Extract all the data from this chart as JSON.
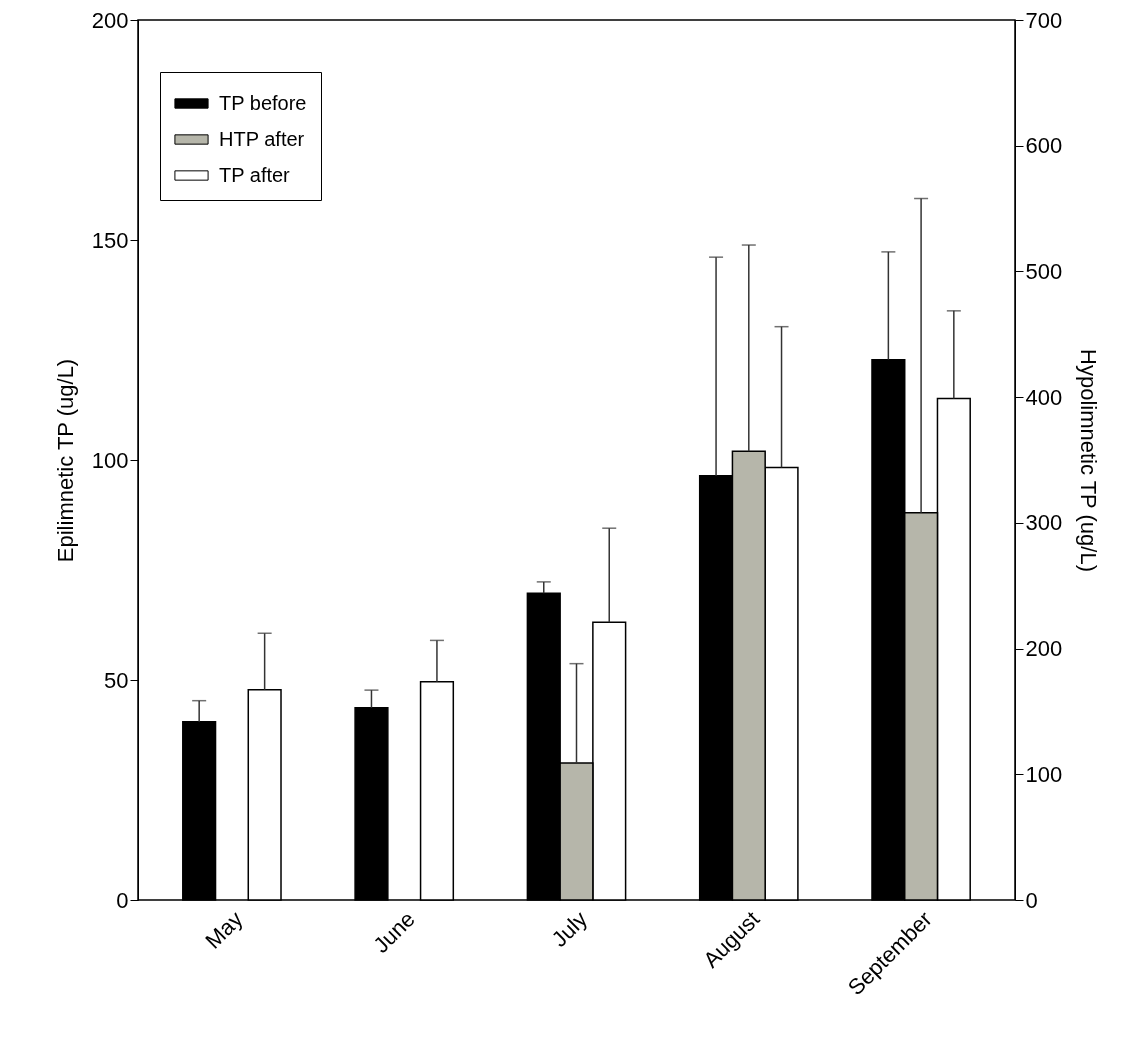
{
  "chart_data": {
    "type": "bar",
    "categories": [
      "May",
      "June",
      "July",
      "August",
      "September"
    ],
    "ylabel": "Epilimnetic TP (ug/L)",
    "y2label": "Hypolimnetic TP (ug/L)",
    "ylim": [
      0,
      200
    ],
    "yticks": [
      0,
      50,
      100,
      150,
      200
    ],
    "y2lim": [
      0,
      700
    ],
    "y2ticks": [
      0,
      100,
      200,
      300,
      400,
      500,
      600,
      700
    ],
    "legend": "top left",
    "series": [
      {
        "name": "TP before",
        "color": "#000000",
        "values": [
          40.5,
          43.7,
          69.7,
          96.4,
          122.8
        ],
        "errors": [
          [
            40.5,
            45.3
          ],
          [
            43.7,
            47.7
          ],
          [
            69.7,
            72.3
          ],
          [
            96.4,
            146.1
          ],
          [
            122.8,
            147.3
          ]
        ]
      },
      {
        "name": "HTP after",
        "color": "#b6b6aa",
        "axis": "y2",
        "values": [
          null,
          null,
          109,
          357,
          308
        ],
        "errors": [
          null,
          null,
          [
            109,
            188
          ],
          [
            357,
            521
          ],
          [
            308,
            558
          ]
        ]
      },
      {
        "name": "TP after",
        "color": "#ffffff",
        "values": [
          47.8,
          49.6,
          63.1,
          98.3,
          114.0
        ],
        "errors": [
          [
            47.8,
            60.6
          ],
          [
            49.6,
            59.0
          ],
          [
            63.1,
            84.5
          ],
          [
            98.3,
            130.3
          ],
          [
            114.0,
            133.9
          ]
        ]
      }
    ]
  }
}
